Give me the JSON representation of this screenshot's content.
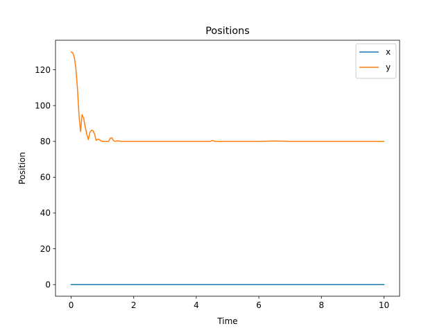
{
  "chart_data": {
    "type": "line",
    "title": "Positions",
    "xlabel": "Time",
    "ylabel": "Position",
    "xlim": [
      -0.5,
      10.5
    ],
    "ylim": [
      -6.5,
      136.5
    ],
    "xticks": [
      0,
      2,
      4,
      6,
      8,
      10
    ],
    "yticks": [
      0,
      20,
      40,
      60,
      80,
      100,
      120
    ],
    "grid": false,
    "legend_position": "top-right",
    "series": [
      {
        "name": "x",
        "color": "#1f77b4",
        "x": [
          0,
          10
        ],
        "values": [
          0,
          0
        ]
      },
      {
        "name": "y",
        "color": "#ff7f0e",
        "x": [
          0,
          0.05,
          0.1,
          0.15,
          0.2,
          0.25,
          0.3,
          0.35,
          0.4,
          0.45,
          0.5,
          0.55,
          0.6,
          0.65,
          0.7,
          0.75,
          0.8,
          0.85,
          0.9,
          0.95,
          1.0,
          1.1,
          1.2,
          1.25,
          1.3,
          1.35,
          1.4,
          1.5,
          1.55,
          1.6,
          1.7,
          2.0,
          3.0,
          4.0,
          4.45,
          4.5,
          4.55,
          4.6,
          5.0,
          6.0,
          6.5,
          7.0,
          8.0,
          9.0,
          10.0
        ],
        "values": [
          130,
          129.5,
          127,
          121,
          110,
          95,
          85.5,
          95,
          93,
          88,
          84,
          81,
          85,
          86.3,
          86,
          84,
          80.5,
          81.3,
          81,
          80.3,
          80,
          80,
          80,
          81.8,
          82,
          80.5,
          80,
          80.3,
          80.1,
          80,
          80,
          80,
          80,
          80,
          80,
          80.5,
          80.3,
          80,
          80,
          80,
          80.2,
          80,
          80,
          80,
          80
        ]
      }
    ]
  }
}
